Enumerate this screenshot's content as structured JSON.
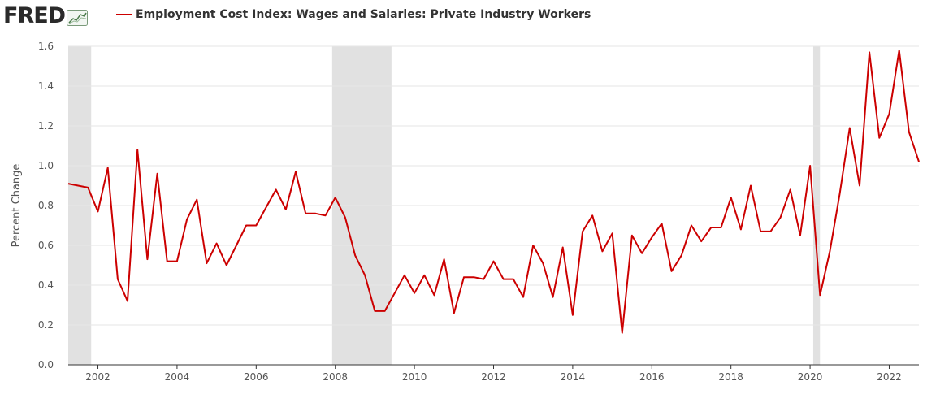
{
  "header": {
    "logo_text": "FRED",
    "series_label": "Employment Cost Index: Wages and Salaries: Private Industry Workers"
  },
  "colors": {
    "series": "#cc0000",
    "recession": "#e1e1e1",
    "grid": "#e6e6e6",
    "axis": "#333333"
  },
  "chart_data": {
    "type": "line",
    "title": "",
    "xlabel": "",
    "ylabel": "Percent Change",
    "xlim": [
      2001.25,
      2022.75
    ],
    "ylim": [
      0,
      1.6
    ],
    "grid": true,
    "yticks": [
      {
        "value": 0.0,
        "label": "0.0"
      },
      {
        "value": 0.2,
        "label": "0.2"
      },
      {
        "value": 0.4,
        "label": "0.4"
      },
      {
        "value": 0.6,
        "label": "0.6"
      },
      {
        "value": 0.8,
        "label": "0.8"
      },
      {
        "value": 1.0,
        "label": "1.0"
      },
      {
        "value": 1.2,
        "label": "1.2"
      },
      {
        "value": 1.4,
        "label": "1.4"
      },
      {
        "value": 1.6,
        "label": "1.6"
      }
    ],
    "xticks": [
      {
        "value": 2002,
        "label": "2002"
      },
      {
        "value": 2004,
        "label": "2004"
      },
      {
        "value": 2006,
        "label": "2006"
      },
      {
        "value": 2008,
        "label": "2008"
      },
      {
        "value": 2010,
        "label": "2010"
      },
      {
        "value": 2012,
        "label": "2012"
      },
      {
        "value": 2014,
        "label": "2014"
      },
      {
        "value": 2016,
        "label": "2016"
      },
      {
        "value": 2018,
        "label": "2018"
      },
      {
        "value": 2020,
        "label": "2020"
      },
      {
        "value": 2022,
        "label": "2022"
      }
    ],
    "recessions": [
      {
        "start": 2001.25,
        "end": 2001.83
      },
      {
        "start": 2007.92,
        "end": 2009.42
      },
      {
        "start": 2020.08,
        "end": 2020.25
      }
    ],
    "series": [
      {
        "name": "Employment Cost Index: Wages and Salaries: Private Industry Workers",
        "x": [
          2001.25,
          2001.75,
          2002.0,
          2002.25,
          2002.5,
          2002.75,
          2003.0,
          2003.25,
          2003.5,
          2003.75,
          2004.0,
          2004.25,
          2004.5,
          2004.75,
          2005.0,
          2005.25,
          2005.5,
          2005.75,
          2006.0,
          2006.25,
          2006.5,
          2006.75,
          2007.0,
          2007.25,
          2007.5,
          2007.75,
          2008.0,
          2008.25,
          2008.5,
          2008.75,
          2009.0,
          2009.25,
          2009.5,
          2009.75,
          2010.0,
          2010.25,
          2010.5,
          2010.75,
          2011.0,
          2011.25,
          2011.5,
          2011.75,
          2012.0,
          2012.25,
          2012.5,
          2012.75,
          2013.0,
          2013.25,
          2013.5,
          2013.75,
          2014.0,
          2014.25,
          2014.5,
          2014.75,
          2015.0,
          2015.25,
          2015.5,
          2015.75,
          2016.0,
          2016.25,
          2016.5,
          2016.75,
          2017.0,
          2017.25,
          2017.5,
          2017.75,
          2018.0,
          2018.25,
          2018.5,
          2018.75,
          2019.0,
          2019.25,
          2019.5,
          2019.75,
          2020.0,
          2020.25,
          2020.5,
          2020.75,
          2021.0,
          2021.25,
          2021.5,
          2021.75,
          2022.0,
          2022.25,
          2022.5,
          2022.75
        ],
        "values": [
          0.91,
          0.89,
          0.77,
          0.99,
          0.43,
          0.32,
          1.08,
          0.53,
          0.96,
          0.52,
          0.52,
          0.73,
          0.83,
          0.51,
          0.61,
          0.5,
          0.6,
          0.7,
          0.7,
          0.79,
          0.88,
          0.78,
          0.97,
          0.76,
          0.76,
          0.75,
          0.84,
          0.74,
          0.55,
          0.45,
          0.27,
          0.27,
          0.36,
          0.45,
          0.36,
          0.45,
          0.35,
          0.53,
          0.26,
          0.44,
          0.44,
          0.43,
          0.52,
          0.43,
          0.43,
          0.34,
          0.6,
          0.51,
          0.34,
          0.59,
          0.25,
          0.67,
          0.75,
          0.57,
          0.66,
          0.16,
          0.65,
          0.56,
          0.64,
          0.71,
          0.47,
          0.55,
          0.7,
          0.62,
          0.69,
          0.69,
          0.84,
          0.68,
          0.9,
          0.67,
          0.67,
          0.74,
          0.88,
          0.65,
          1.0,
          0.35,
          0.57,
          0.86,
          1.19,
          0.9,
          1.57,
          1.14,
          1.26,
          1.58,
          1.17,
          1.02
        ]
      }
    ]
  }
}
